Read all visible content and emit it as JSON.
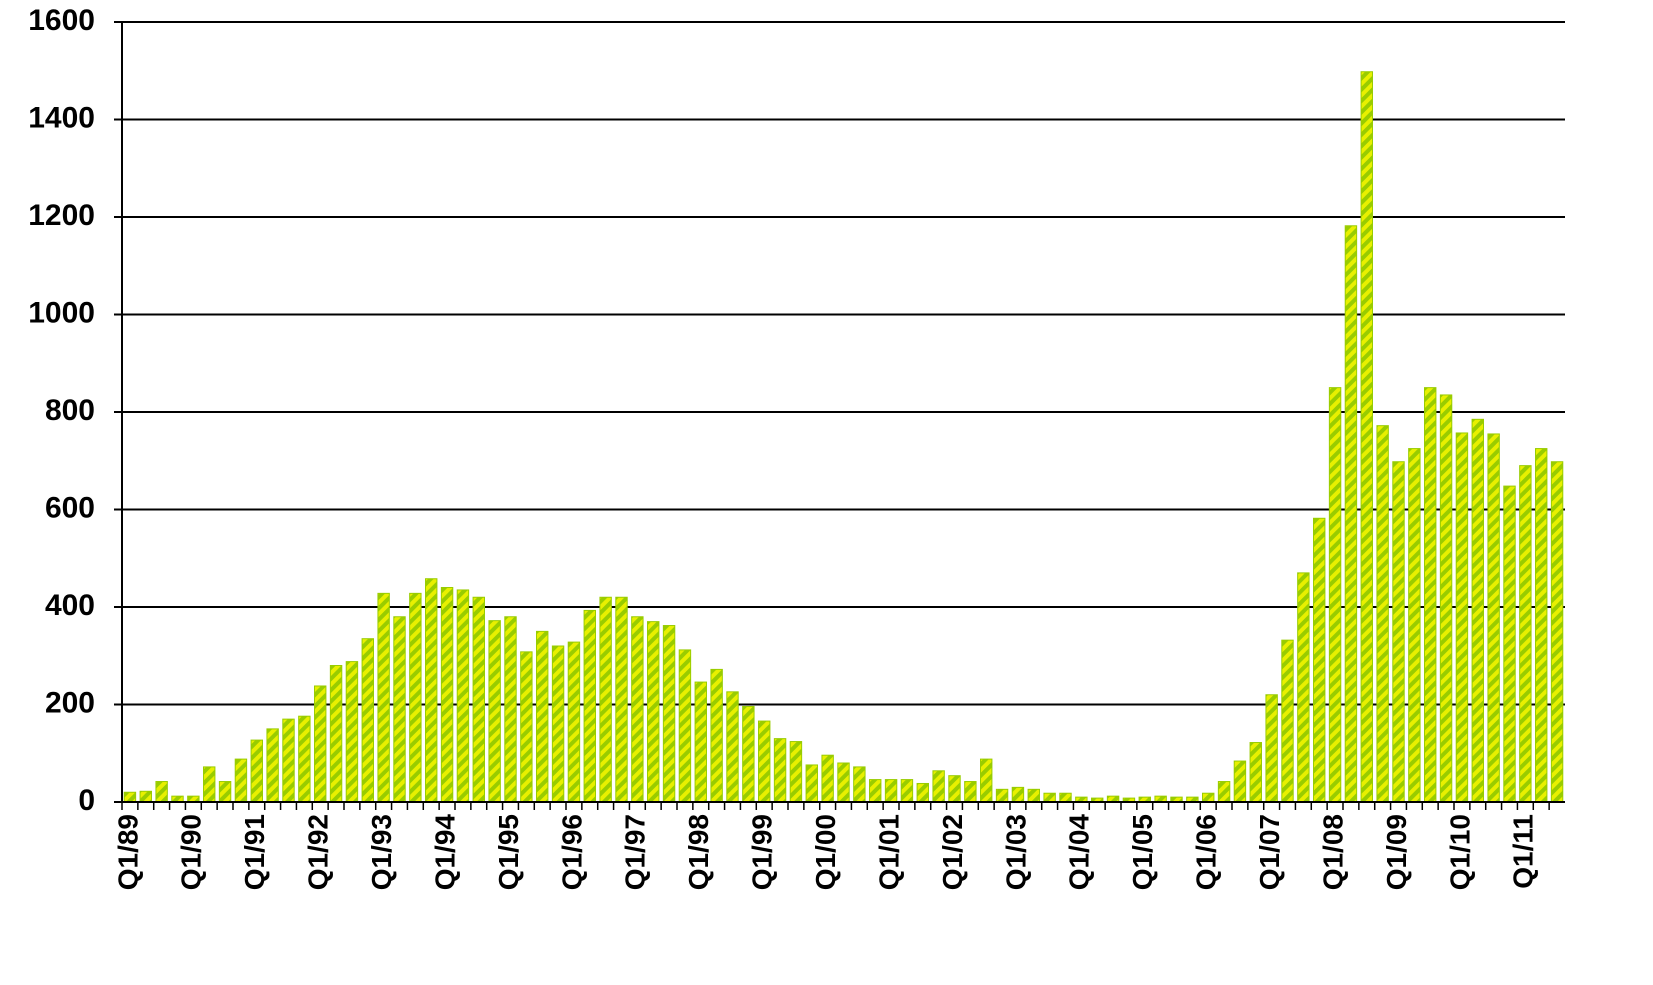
{
  "chart_data": {
    "type": "bar",
    "categories": [
      "Q1/89",
      null,
      null,
      null,
      "Q1/90",
      null,
      null,
      null,
      "Q1/91",
      null,
      null,
      null,
      "Q1/92",
      null,
      null,
      null,
      "Q1/93",
      null,
      null,
      null,
      "Q1/94",
      null,
      null,
      null,
      "Q1/95",
      null,
      null,
      null,
      "Q1/96",
      null,
      null,
      null,
      "Q1/97",
      null,
      null,
      null,
      "Q1/98",
      null,
      null,
      null,
      "Q1/99",
      null,
      null,
      null,
      "Q1/00",
      null,
      null,
      null,
      "Q1/01",
      null,
      null,
      null,
      "Q1/02",
      null,
      null,
      null,
      "Q1/03",
      null,
      null,
      null,
      "Q1/04",
      null,
      null,
      null,
      "Q1/05",
      null,
      null,
      null,
      "Q1/06",
      null,
      null,
      null,
      "Q1/07",
      null,
      null,
      null,
      "Q1/08",
      null,
      null,
      null,
      "Q1/09",
      null,
      null,
      null,
      "Q1/10",
      null,
      null,
      null,
      "Q1/11",
      null,
      null
    ],
    "values": [
      20,
      22,
      42,
      12,
      12,
      72,
      42,
      88,
      127,
      150,
      170,
      176,
      238,
      280,
      288,
      335,
      428,
      380,
      428,
      458,
      440,
      435,
      420,
      372,
      380,
      308,
      350,
      320,
      328,
      393,
      420,
      420,
      380,
      370,
      362,
      312,
      246,
      272,
      226,
      196,
      166,
      130,
      124,
      76,
      96,
      80,
      72,
      46,
      46,
      46,
      38,
      64,
      54,
      42,
      88,
      26,
      30,
      26,
      18,
      18,
      10,
      8,
      12,
      8,
      10,
      12,
      10,
      10,
      18,
      42,
      84,
      122,
      220,
      332,
      470,
      582,
      850,
      1182,
      1498,
      772,
      698,
      725,
      850,
      835,
      757,
      785,
      755,
      648,
      690,
      725,
      698
    ],
    "color": "#e8f000",
    "stripe_color": "#99cc00",
    "ylim": [
      0,
      1600
    ],
    "yticks": [
      0,
      200,
      400,
      600,
      800,
      1000,
      1200,
      1400,
      1600
    ],
    "grid": true
  }
}
